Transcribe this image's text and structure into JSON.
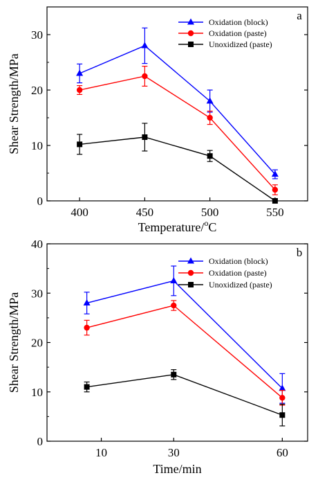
{
  "chart_data": [
    {
      "type": "line",
      "panel_label": "a",
      "xlabel": "Temperature/",
      "xlabel_sup": "o",
      "xlabel_unit": "C",
      "ylabel": "Shear Strength/MPa",
      "x": [
        400,
        450,
        500,
        550
      ],
      "x_tick_labels": [
        "400",
        "450",
        "500",
        "550"
      ],
      "xlim": [
        375,
        575
      ],
      "ylim": [
        0,
        35
      ],
      "y_ticks": [
        0,
        10,
        20,
        30
      ],
      "y_tick_labels": [
        "0",
        "10",
        "20",
        "30"
      ],
      "legend_position": "top-right",
      "grid": false,
      "series": [
        {
          "name": "Oxidation (block)",
          "color": "#0000ff",
          "marker": "triangle",
          "values": [
            23.0,
            28.0,
            18.0,
            4.8
          ],
          "errors": [
            1.7,
            3.2,
            2.0,
            0.8
          ]
        },
        {
          "name": "Oxidation (paste)",
          "color": "#ff0000",
          "marker": "circle",
          "values": [
            20.0,
            22.5,
            15.0,
            2.0
          ],
          "errors": [
            0.8,
            1.8,
            1.2,
            0.9
          ]
        },
        {
          "name": "Unoxidized (paste)",
          "color": "#000000",
          "marker": "square",
          "values": [
            10.2,
            11.5,
            8.1,
            0.0
          ],
          "errors": [
            1.8,
            2.5,
            1.0,
            0.3
          ]
        }
      ]
    },
    {
      "type": "line",
      "panel_label": "b",
      "xlabel": "Time/min",
      "ylabel": "Shear Strength/MPa",
      "x": [
        6,
        30,
        60
      ],
      "x_ticks": [
        10,
        30,
        60
      ],
      "x_tick_labels": [
        "10",
        "30",
        "60"
      ],
      "xlim": [
        -5,
        67
      ],
      "ylim": [
        0,
        40
      ],
      "y_ticks": [
        0,
        10,
        20,
        30,
        40
      ],
      "y_tick_labels": [
        "0",
        "10",
        "20",
        "30",
        "40"
      ],
      "legend_position": "top-right",
      "grid": false,
      "series": [
        {
          "name": "Oxidation (block)",
          "color": "#0000ff",
          "marker": "triangle",
          "values": [
            28.0,
            32.5,
            10.7
          ],
          "errors": [
            2.2,
            3.0,
            3.0
          ]
        },
        {
          "name": "Oxidation (paste)",
          "color": "#ff0000",
          "marker": "circle",
          "values": [
            23.0,
            27.5,
            8.8
          ],
          "errors": [
            1.5,
            1.0,
            1.5
          ]
        },
        {
          "name": "Unoxidized (paste)",
          "color": "#000000",
          "marker": "square",
          "values": [
            11.0,
            13.5,
            5.3
          ],
          "errors": [
            1.0,
            1.0,
            2.2
          ]
        }
      ]
    }
  ]
}
